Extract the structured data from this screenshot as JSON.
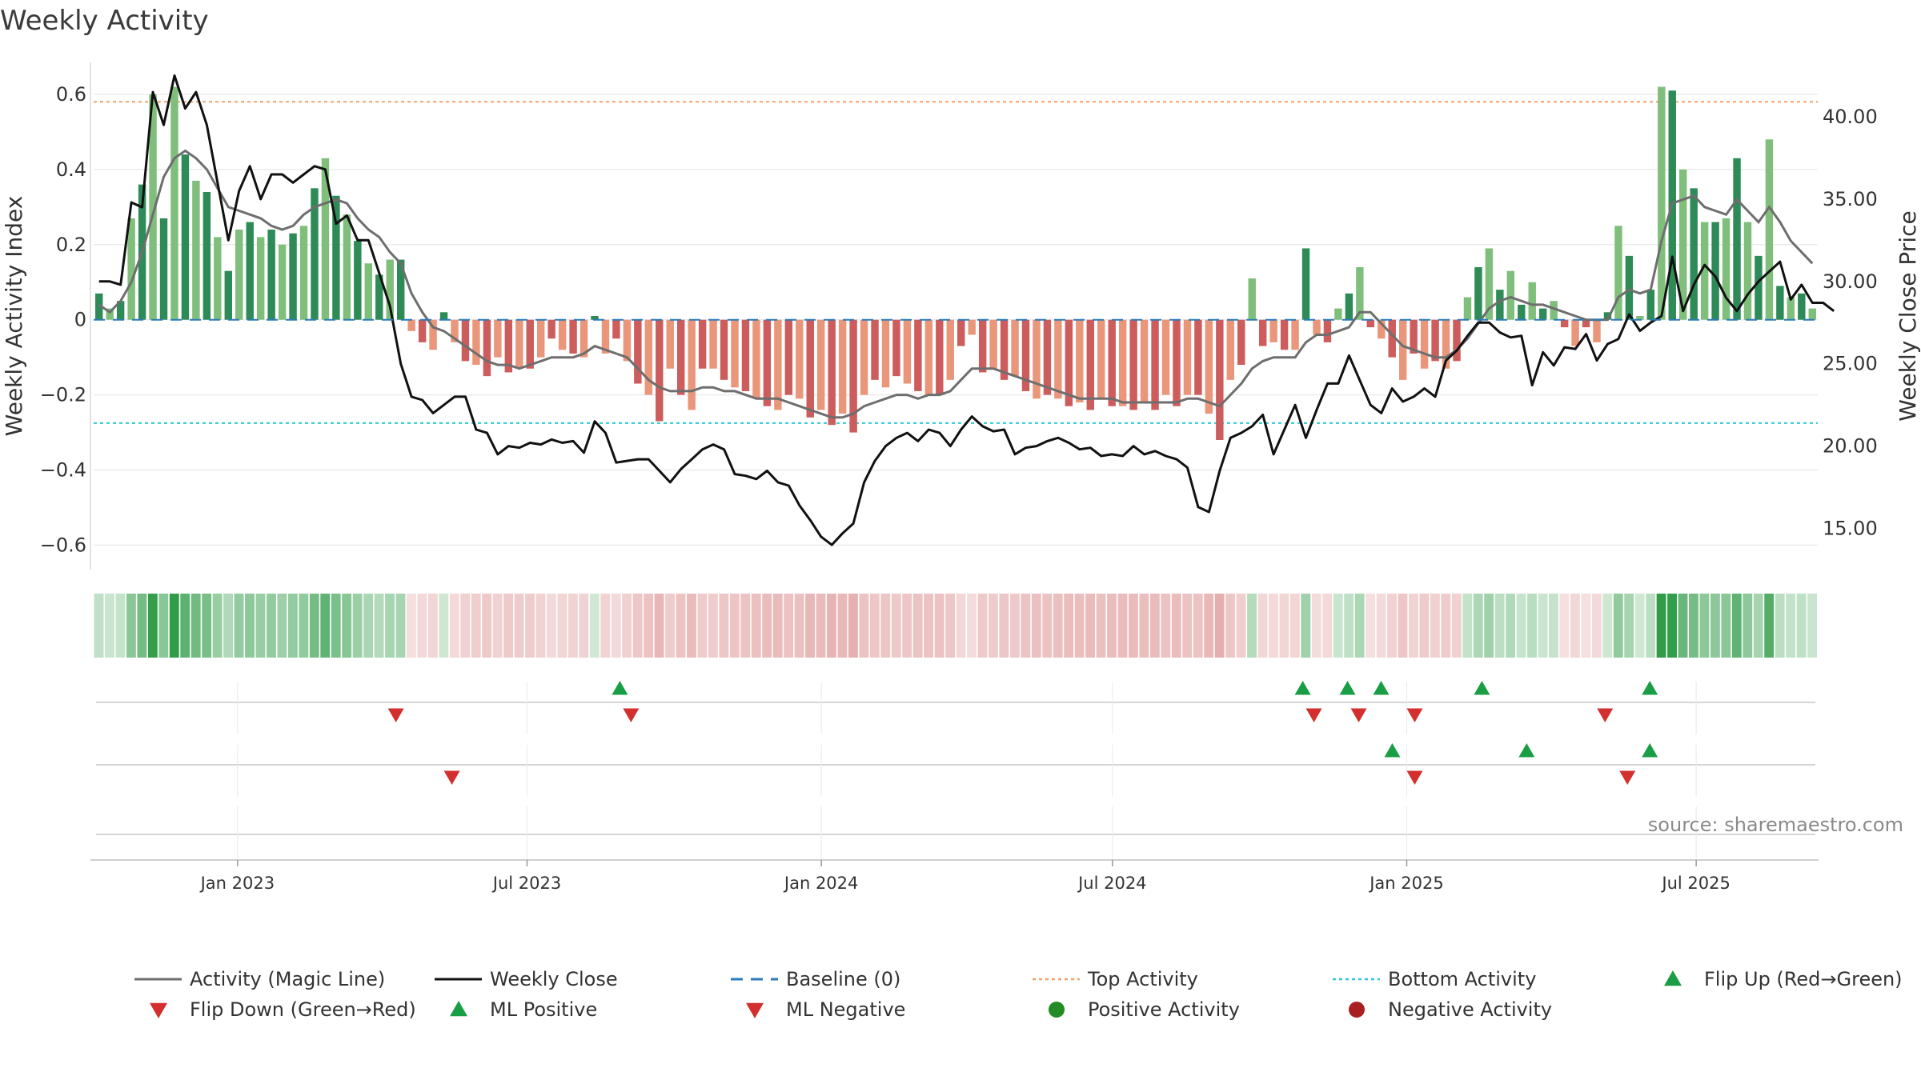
{
  "chart_data": {
    "type": "bar",
    "title": "Weekly Activity",
    "ylabel_left": "Weekly Activity Index",
    "ylabel_right": "Weekly Close Price",
    "left_axis": {
      "range": [
        -0.665,
        0.685
      ],
      "ticks": [
        0.6,
        0.4,
        0.2,
        0,
        -0.2,
        -0.4,
        -0.6
      ],
      "tick_labels": [
        "0.6",
        "0.4",
        "0.2",
        "0",
        "−0.2",
        "−0.4",
        "−0.6"
      ]
    },
    "right_axis": {
      "range": [
        12.5,
        43.3
      ],
      "ticks": [
        40,
        35,
        30,
        25,
        20,
        15
      ],
      "tick_labels": [
        "40.00",
        "35.00",
        "30.00",
        "25.00",
        "20.00",
        "15.00"
      ]
    },
    "x_axis": {
      "start": "2022-10-03",
      "end": "2025-09-15",
      "ticks": [
        "2023-01-01",
        "2023-07-01",
        "2024-01-01",
        "2024-07-01",
        "2025-01-01",
        "2025-07-01"
      ],
      "tick_labels": [
        "Jan 2023",
        "Jul 2023",
        "Jan 2024",
        "Jul 2024",
        "Jan 2025",
        "Jul 2025"
      ]
    },
    "thresholds": {
      "top_activity": 0.58,
      "bottom_activity": -0.275,
      "baseline": 0
    },
    "series": [
      {
        "name": "Weekly Activity",
        "kind": "bar",
        "values": [
          0.07,
          0.03,
          0.05,
          0.27,
          0.36,
          0.6,
          0.27,
          0.62,
          0.44,
          0.37,
          0.34,
          0.22,
          0.13,
          0.24,
          0.26,
          0.22,
          0.24,
          0.2,
          0.23,
          0.25,
          0.35,
          0.43,
          0.33,
          0.28,
          0.21,
          0.15,
          0.12,
          0.16,
          0.16,
          -0.03,
          -0.06,
          -0.08,
          0.02,
          -0.06,
          -0.11,
          -0.12,
          -0.15,
          -0.1,
          -0.14,
          -0.13,
          -0.13,
          -0.1,
          -0.05,
          -0.08,
          -0.09,
          -0.1,
          0.01,
          -0.09,
          -0.05,
          -0.11,
          -0.17,
          -0.2,
          -0.27,
          -0.13,
          -0.2,
          -0.24,
          -0.13,
          -0.13,
          -0.16,
          -0.18,
          -0.19,
          -0.21,
          -0.23,
          -0.24,
          -0.2,
          -0.21,
          -0.26,
          -0.24,
          -0.28,
          -0.25,
          -0.3,
          -0.2,
          -0.16,
          -0.18,
          -0.15,
          -0.17,
          -0.19,
          -0.2,
          -0.2,
          -0.16,
          -0.07,
          -0.04,
          -0.14,
          -0.13,
          -0.16,
          -0.15,
          -0.19,
          -0.21,
          -0.2,
          -0.21,
          -0.23,
          -0.22,
          -0.24,
          -0.21,
          -0.23,
          -0.23,
          -0.24,
          -0.22,
          -0.24,
          -0.2,
          -0.23,
          -0.2,
          -0.2,
          -0.25,
          -0.32,
          -0.16,
          -0.12,
          0.11,
          -0.07,
          -0.06,
          -0.08,
          -0.08,
          0.19,
          -0.04,
          -0.06,
          0.03,
          0.07,
          0.14,
          -0.02,
          -0.05,
          -0.1,
          -0.16,
          -0.09,
          -0.13,
          -0.11,
          -0.13,
          -0.11,
          0.06,
          0.14,
          0.19,
          0.08,
          0.13,
          0.04,
          0.1,
          0.03,
          0.05,
          -0.02,
          -0.07,
          -0.02,
          -0.06,
          0.02,
          0.25,
          0.17,
          0.01,
          0.08,
          0.62,
          0.61,
          0.4,
          0.35,
          0.26,
          0.26,
          0.27,
          0.43,
          0.26,
          0.17,
          0.48,
          0.09,
          0.06,
          0.07,
          0.03
        ]
      },
      {
        "name": "Activity (Magic Line)",
        "kind": "line",
        "values": [
          0.04,
          0.02,
          0.05,
          0.1,
          0.18,
          0.28,
          0.38,
          0.43,
          0.45,
          0.43,
          0.4,
          0.35,
          0.3,
          0.29,
          0.28,
          0.27,
          0.25,
          0.24,
          0.25,
          0.28,
          0.3,
          0.31,
          0.32,
          0.31,
          0.27,
          0.24,
          0.22,
          0.18,
          0.15,
          0.07,
          0.02,
          -0.02,
          -0.03,
          -0.05,
          -0.07,
          -0.09,
          -0.11,
          -0.12,
          -0.12,
          -0.13,
          -0.12,
          -0.11,
          -0.1,
          -0.1,
          -0.1,
          -0.09,
          -0.07,
          -0.08,
          -0.09,
          -0.1,
          -0.13,
          -0.16,
          -0.18,
          -0.19,
          -0.19,
          -0.19,
          -0.18,
          -0.18,
          -0.19,
          -0.19,
          -0.2,
          -0.21,
          -0.21,
          -0.21,
          -0.22,
          -0.23,
          -0.24,
          -0.25,
          -0.26,
          -0.26,
          -0.25,
          -0.23,
          -0.22,
          -0.21,
          -0.2,
          -0.2,
          -0.21,
          -0.2,
          -0.2,
          -0.19,
          -0.16,
          -0.13,
          -0.13,
          -0.13,
          -0.14,
          -0.15,
          -0.16,
          -0.17,
          -0.18,
          -0.19,
          -0.2,
          -0.21,
          -0.21,
          -0.21,
          -0.21,
          -0.22,
          -0.22,
          -0.22,
          -0.22,
          -0.22,
          -0.22,
          -0.21,
          -0.21,
          -0.22,
          -0.23,
          -0.2,
          -0.17,
          -0.13,
          -0.11,
          -0.1,
          -0.1,
          -0.1,
          -0.06,
          -0.04,
          -0.04,
          -0.03,
          -0.02,
          0.02,
          0.02,
          -0.01,
          -0.04,
          -0.07,
          -0.08,
          -0.09,
          -0.1,
          -0.1,
          -0.08,
          -0.05,
          -0.01,
          0.03,
          0.05,
          0.06,
          0.05,
          0.04,
          0.04,
          0.03,
          0.02,
          0.01,
          0.0,
          0.0,
          0.0,
          0.06,
          0.08,
          0.07,
          0.08,
          0.21,
          0.31,
          0.32,
          0.33,
          0.3,
          0.29,
          0.28,
          0.32,
          0.29,
          0.26,
          0.3,
          0.26,
          0.21,
          0.18,
          0.15
        ]
      },
      {
        "name": "Weekly Close",
        "kind": "line",
        "axis": "right",
        "values": [
          30.0,
          30.0,
          29.8,
          34.8,
          34.5,
          41.5,
          39.5,
          42.5,
          40.5,
          41.5,
          39.5,
          36.0,
          32.5,
          35.5,
          37.0,
          35.0,
          36.5,
          36.5,
          36.0,
          36.5,
          37.0,
          36.8,
          33.5,
          34.0,
          32.5,
          32.5,
          30.5,
          28.5,
          25.0,
          23.0,
          22.8,
          22.0,
          22.5,
          23.0,
          23.0,
          21.0,
          20.8,
          19.5,
          20.0,
          19.9,
          20.2,
          20.1,
          20.4,
          20.2,
          20.3,
          19.6,
          21.5,
          20.8,
          19.0,
          19.1,
          19.2,
          19.2,
          18.5,
          17.8,
          18.6,
          19.2,
          19.8,
          20.1,
          19.8,
          18.3,
          18.2,
          18.0,
          18.5,
          17.8,
          17.6,
          16.4,
          15.5,
          14.5,
          14.0,
          14.7,
          15.3,
          17.8,
          19.1,
          20.0,
          20.5,
          20.8,
          20.3,
          21.0,
          20.8,
          20.0,
          21.0,
          21.8,
          21.2,
          20.9,
          21.0,
          19.5,
          19.9,
          20.0,
          20.3,
          20.5,
          20.2,
          19.8,
          19.9,
          19.4,
          19.5,
          19.4,
          20.0,
          19.5,
          19.7,
          19.4,
          19.2,
          18.7,
          16.3,
          16.0,
          18.5,
          20.5,
          20.8,
          21.2,
          21.9,
          19.5,
          21.0,
          22.5,
          20.5,
          22.2,
          23.8,
          23.8,
          25.5,
          24.0,
          22.5,
          22.0,
          23.5,
          22.7,
          23.0,
          23.5,
          23.0,
          25.2,
          25.8,
          26.7,
          27.5,
          27.5,
          26.9,
          26.6,
          26.7,
          23.7,
          25.7,
          24.9,
          26.0,
          25.9,
          26.8,
          25.2,
          26.2,
          26.5,
          28.0,
          27.0,
          27.5,
          27.9,
          31.5,
          28.2,
          29.8,
          31.0,
          30.3,
          29.0,
          28.2,
          29.2,
          30.0,
          30.6,
          31.2,
          28.9,
          29.8,
          28.7,
          28.7,
          28.2
        ]
      },
      {
        "name": "Baseline (0)",
        "kind": "line",
        "values": [
          0
        ]
      },
      {
        "name": "Top Activity",
        "kind": "line",
        "values": [
          0.58
        ]
      },
      {
        "name": "Bottom Activity",
        "kind": "line",
        "values": [
          -0.275
        ]
      }
    ],
    "markers": {
      "flip_up": [
        "2023-08-28",
        "2024-10-28",
        "2024-11-25",
        "2024-12-16",
        "2025-02-17",
        "2025-06-02"
      ],
      "flip_down": [
        "2023-04-10",
        "2023-09-04",
        "2024-11-04",
        "2024-12-02",
        "2025-01-06",
        "2025-05-05"
      ],
      "ml_positive": [
        "2024-12-23",
        "2025-03-17",
        "2025-06-02"
      ],
      "ml_negative": [
        "2023-05-15",
        "2025-01-06",
        "2025-05-19"
      ]
    },
    "legend": [
      {
        "label": "Activity (Magic Line)",
        "kind": "line",
        "color": "#6e6e6e"
      },
      {
        "label": "Weekly Close",
        "kind": "line",
        "color": "#111111"
      },
      {
        "label": "Baseline (0)",
        "kind": "dash",
        "color": "#2b7bb9"
      },
      {
        "label": "Top Activity",
        "kind": "dot",
        "color": "#f4a06a"
      },
      {
        "label": "Bottom Activity",
        "kind": "dot",
        "color": "#2cc9d6"
      },
      {
        "label": "Flip Up (Red→Green)",
        "kind": "tri-up",
        "color": "#1a9e45"
      },
      {
        "label": "Flip Down (Green→Red)",
        "kind": "tri-down",
        "color": "#d32f2f"
      },
      {
        "label": "ML Positive",
        "kind": "tri-up",
        "color": "#1a9e45"
      },
      {
        "label": "ML Negative",
        "kind": "tri-down",
        "color": "#d32f2f"
      },
      {
        "label": "Positive Activity",
        "kind": "circle",
        "color": "#238b23"
      },
      {
        "label": "Negative Activity",
        "kind": "circle",
        "color": "#a82020"
      }
    ],
    "source": "source: sharemaestro.com"
  },
  "colors": {
    "pos_strong": "#2e8b57",
    "pos_light": "#7fbf7b",
    "neg_strong": "#cd5c5c",
    "neg_light": "#e9967a",
    "magic": "#6e6e6e",
    "close": "#111111",
    "baseline": "#2b7bb9",
    "top": "#f4a06a",
    "bottom": "#2cc9d6",
    "up": "#1a9e45",
    "down": "#d32f2f"
  }
}
